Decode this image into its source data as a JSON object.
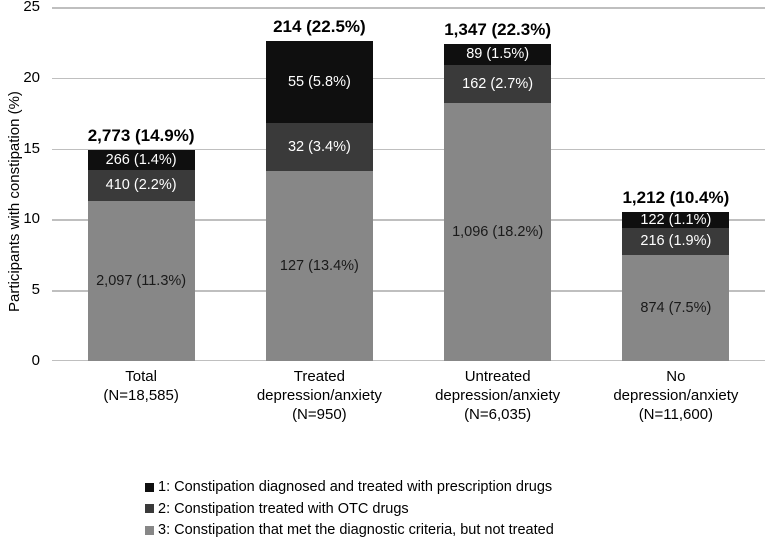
{
  "chart_data": {
    "type": "bar",
    "stacked": true,
    "ylabel": "Participants with constipation (%)",
    "ylim": [
      0,
      25
    ],
    "yticks": [
      0,
      5,
      10,
      15,
      20,
      25
    ],
    "grid": "horizontal",
    "legend_position": "bottom",
    "categories": [
      {
        "lines": [
          "Total",
          "(N=18,585)"
        ],
        "n": 18585,
        "total_count": 2773,
        "total_pct": 14.9,
        "total_label": "2,773 (14.9%)"
      },
      {
        "lines": [
          "Treated",
          "depression/anxiety",
          "(N=950)"
        ],
        "n": 950,
        "total_count": 214,
        "total_pct": 22.5,
        "total_label": "214 (22.5%)"
      },
      {
        "lines": [
          "Untreated",
          "depression/anxiety",
          "(N=6,035)"
        ],
        "n": 6035,
        "total_count": 1347,
        "total_pct": 22.3,
        "total_label": "1,347 (22.3%)"
      },
      {
        "lines": [
          "No",
          "depression/anxiety",
          "(N=11,600)"
        ],
        "n": 11600,
        "total_count": 1212,
        "total_pct": 10.4,
        "total_label": "1,212 (10.4%)"
      }
    ],
    "series": [
      {
        "name": "1: Constipation diagnosed and treated with prescription drugs",
        "color": "#0f0f0f",
        "label_color": "#ffffff",
        "counts": [
          266,
          55,
          89,
          122
        ],
        "pcts": [
          1.4,
          5.8,
          1.5,
          1.1
        ],
        "labels": [
          "266 (1.4%)",
          "55 (5.8%)",
          "89 (1.5%)",
          "122 (1.1%)"
        ]
      },
      {
        "name": "2: Constipation treated with OTC drugs",
        "color": "#3a3a3a",
        "label_color": "#ffffff",
        "counts": [
          410,
          32,
          162,
          216
        ],
        "pcts": [
          2.2,
          3.4,
          2.7,
          1.9
        ],
        "labels": [
          "410 (2.2%)",
          "32 (3.4%)",
          "162 (2.7%)",
          "216 (1.9%)"
        ]
      },
      {
        "name": "3: Constipation that met the diagnostic criteria, but not treated",
        "color": "#878787",
        "label_color": "#1a1a1a",
        "counts": [
          2097,
          127,
          1096,
          874
        ],
        "pcts": [
          11.3,
          13.4,
          18.2,
          7.5
        ],
        "labels": [
          "2,097 (11.3%)",
          "127 (13.4%)",
          "1,096 (18.2%)",
          "874 (7.5%)"
        ]
      }
    ],
    "colors": {
      "gridline": "#bfbfbf",
      "axis_text": "#000000",
      "total_label": "#000000",
      "background": "#ffffff"
    }
  },
  "legend": {
    "items": [
      {
        "label": "1: Constipation diagnosed and treated with prescription drugs",
        "color": "#0f0f0f"
      },
      {
        "label": "2: Constipation treated with OTC drugs",
        "color": "#3a3a3a"
      },
      {
        "label": "3: Constipation that met the diagnostic criteria, but not treated",
        "color": "#878787"
      }
    ]
  }
}
